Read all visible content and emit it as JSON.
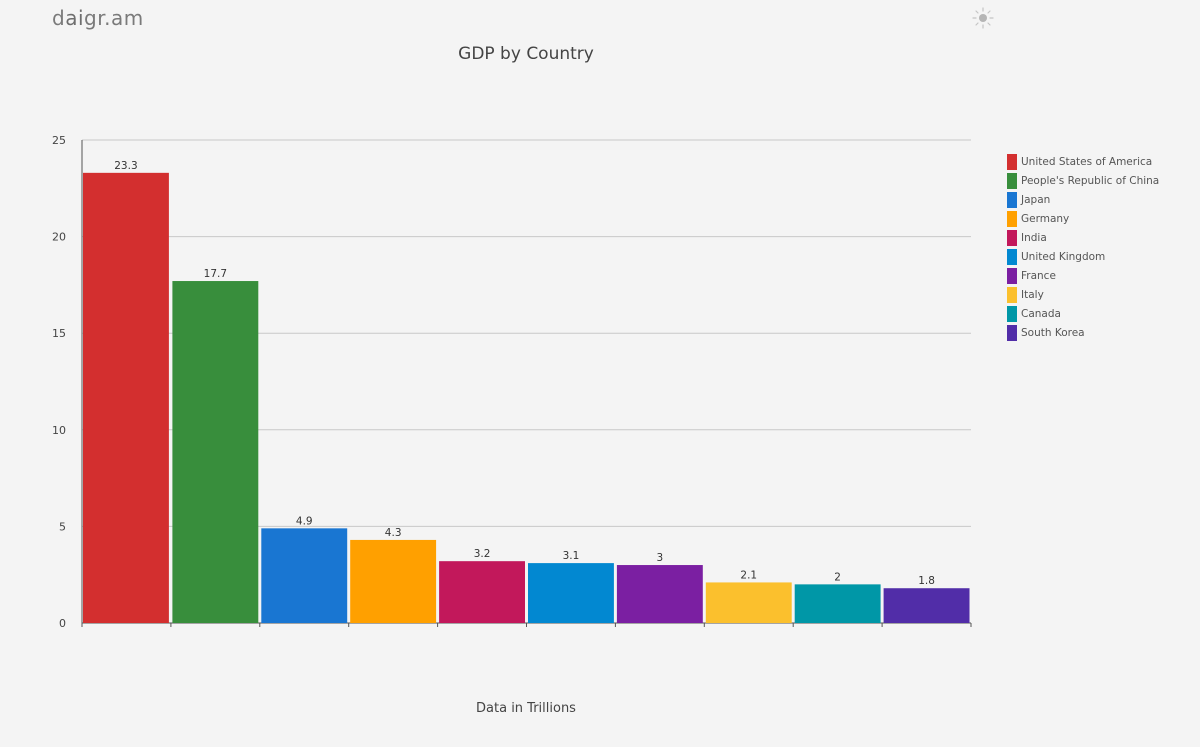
{
  "header": {
    "logo_text_pre": "d",
    "logo_text_ai": "ai",
    "logo_text_post": "gr.am",
    "theme_icon": "sun-icon"
  },
  "chart_data": {
    "type": "bar",
    "title": "GDP by Country",
    "xlabel": "Data in Trillions",
    "ylabel": "",
    "ylim": [
      0,
      25
    ],
    "yticks": [
      0,
      5,
      10,
      15,
      20,
      25
    ],
    "grid": true,
    "legend_position": "right",
    "categories": [
      "United States of America",
      "People's Republic of China",
      "Japan",
      "Germany",
      "India",
      "United Kingdom",
      "France",
      "Italy",
      "Canada",
      "South Korea"
    ],
    "values": [
      23.3,
      17.7,
      4.9,
      4.3,
      3.2,
      3.1,
      3,
      2.1,
      2,
      1.8
    ],
    "value_labels": [
      "23.3",
      "17.7",
      "4.9",
      "4.3",
      "3.2",
      "3.1",
      "3",
      "2.1",
      "2",
      "1.8"
    ],
    "colors": [
      "#d32f2f",
      "#388e3c",
      "#1976d2",
      "#ffa000",
      "#c2185b",
      "#0288d1",
      "#7b1fa2",
      "#fbc02d",
      "#0097a7",
      "#512da8"
    ]
  }
}
